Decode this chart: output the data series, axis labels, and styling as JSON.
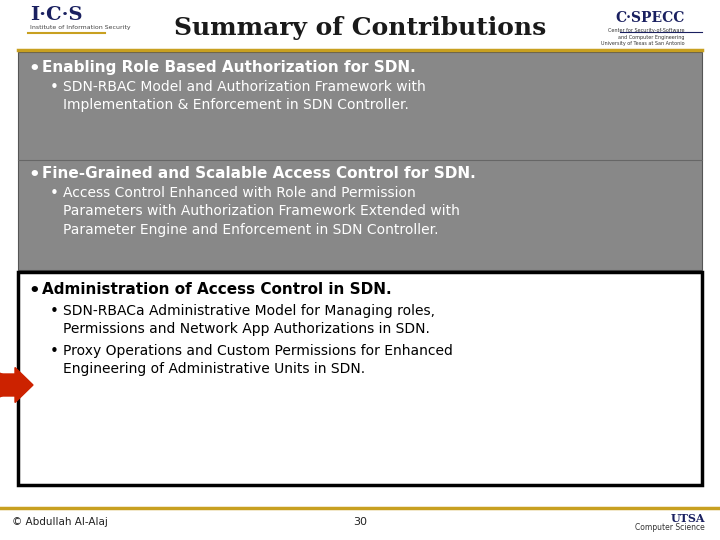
{
  "title": "Summary of Contributions",
  "title_fontsize": 18,
  "background_color": "#ffffff",
  "gold_color": "#c8a020",
  "gray_bg": "#888888",
  "section1": {
    "bullet_bold": "Enabling Role Based Authorization for SDN.",
    "sub_bullets": [
      "SDN-RBAC Model and Authorization Framework with\nImplementation & Enforcement in SDN Controller."
    ]
  },
  "section2": {
    "bullet_bold": "Fine-Grained and Scalable Access Control for SDN.",
    "sub_bullets": [
      "Access Control Enhanced with Role and Permission\nParameters with Authorization Framework Extended with\nParameter Engine and Enforcement in SDN Controller."
    ]
  },
  "section3": {
    "bullet_bold": "Administration of Access Control in SDN.",
    "sub_bullets": [
      "SDN-RBACa Administrative Model for Managing roles,\nPermissions and Network App Authorizations in SDN.",
      "Proxy Operations and Custom Permissions for Enhanced\nEngineering of Administrative Units in SDN."
    ]
  },
  "arrow_color": "#cc2200",
  "footer_left": "© Abdullah Al-Alaj",
  "footer_center": "30"
}
